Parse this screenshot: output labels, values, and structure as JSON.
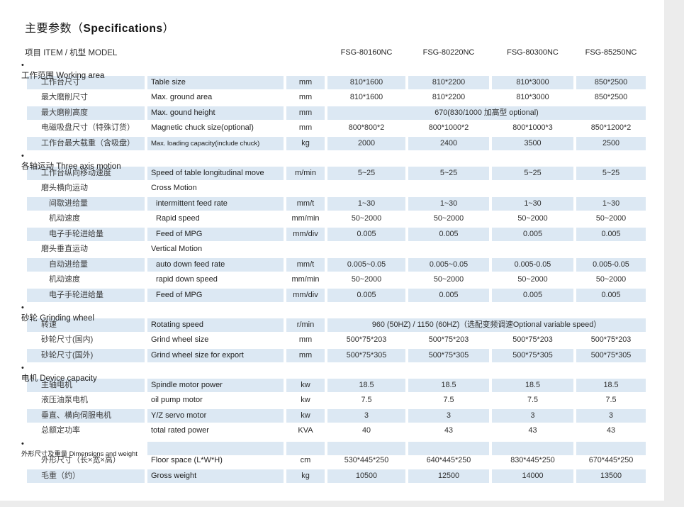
{
  "title": {
    "zh": "主要参数",
    "open": "（",
    "en": "Specifications",
    "close": "）"
  },
  "header": {
    "item_label": "项目 ITEM / 机型 MODEL",
    "models": [
      "FSG-80160NC",
      "FSG-80220NC",
      "FSG-80300NC",
      "FSG-85250NC"
    ]
  },
  "colors": {
    "row_shade": "#dce8f3",
    "page_bg": "#ffffff",
    "outer_bg": "#ececec"
  },
  "table": {
    "sections": [
      {
        "title_zh": "工作范围",
        "title_en": "Working area",
        "header_shaded": false,
        "rows": [
          {
            "zh": "工作台尺寸",
            "en": "Table size",
            "unit": "mm",
            "values": [
              "810*1600",
              "810*2200",
              "810*3000",
              "850*2500"
            ],
            "shaded": true
          },
          {
            "zh": "最大磨削尺寸",
            "en": "Max. ground area",
            "unit": "mm",
            "values": [
              "810*1600",
              "810*2200",
              "810*3000",
              "850*2500"
            ],
            "shaded": false
          },
          {
            "zh": "最大磨削高度",
            "en": "Max. gound height",
            "unit": "mm",
            "span_value": "670(830/1000 加高型 optional)",
            "shaded": true
          },
          {
            "zh": "电磁吸盘尺寸（特殊订货）",
            "en": "Magnetic chuck size(optional)",
            "unit": "mm",
            "values": [
              "800*800*2",
              "800*1000*2",
              "800*1000*3",
              "850*1200*2"
            ],
            "shaded": false
          },
          {
            "zh": "工作台最大载重（含吸盘）",
            "en": "Max. loading capacity(include chuck)",
            "en_small": true,
            "unit": "kg",
            "values": [
              "2000",
              "2400",
              "3500",
              "2500"
            ],
            "shaded": true
          }
        ]
      },
      {
        "title_zh": "各轴运动",
        "title_en": "Three axis motion",
        "header_shaded": false,
        "rows": [
          {
            "zh": "工作台纵向移动速度",
            "en": "Speed of table longitudinal move",
            "unit": "m/min",
            "values": [
              "5~25",
              "5~25",
              "5~25",
              "5~25"
            ],
            "shaded": true
          },
          {
            "zh": "磨头横向运动",
            "en": "Cross Motion",
            "unit": "",
            "values": [
              "",
              "",
              "",
              ""
            ],
            "shaded": false
          },
          {
            "zh": "间歇进给量",
            "en": "intermittent feed rate",
            "unit": "mm/t",
            "values": [
              "1~30",
              "1~30",
              "1~30",
              "1~30"
            ],
            "shaded": true,
            "indent": 1
          },
          {
            "zh": "机动速度",
            "en": "Rapid speed",
            "unit": "mm/min",
            "values": [
              "50~2000",
              "50~2000",
              "50~2000",
              "50~2000"
            ],
            "shaded": false,
            "indent": 1
          },
          {
            "zh": "电子手轮进给量",
            "en": "Feed of MPG",
            "unit": "mm/div",
            "values": [
              "0.005",
              "0.005",
              "0.005",
              "0.005"
            ],
            "shaded": true,
            "indent": 1
          },
          {
            "zh": "磨头垂直运动",
            "en": "Vertical Motion",
            "unit": "",
            "values": [
              "",
              "",
              "",
              ""
            ],
            "shaded": false
          },
          {
            "zh": "自动进给量",
            "en": "auto down feed rate",
            "unit": "mm/t",
            "values": [
              "0.005~0.05",
              "0.005~0.05",
              "0.005-0.05",
              "0.005-0.05"
            ],
            "shaded": true,
            "indent": 1
          },
          {
            "zh": "机动速度",
            "en": "rapid down speed",
            "unit": "mm/min",
            "values": [
              "50~2000",
              "50~2000",
              "50~2000",
              "50~2000"
            ],
            "shaded": false,
            "indent": 1
          },
          {
            "zh": "电子手轮进给量",
            "en": "Feed of MPG",
            "unit": "mm/div",
            "values": [
              "0.005",
              "0.005",
              "0.005",
              "0.005"
            ],
            "shaded": true,
            "indent": 1
          }
        ]
      },
      {
        "title_zh": "砂轮",
        "title_en": "Grinding wheel",
        "header_shaded": false,
        "rows": [
          {
            "zh": "转速",
            "en": "Rotating speed",
            "unit": "r/min",
            "span_value": "960 (50HZ) / 1150 (60HZ)（选配变频调速Optional variable speed）",
            "shaded": true
          },
          {
            "zh": "砂轮尺寸(国内)",
            "en": "Grind wheel size",
            "unit": "mm",
            "values": [
              "500*75*203",
              "500*75*203",
              "500*75*203",
              "500*75*203"
            ],
            "shaded": false
          },
          {
            "zh": "砂轮尺寸(国外)",
            "en": "Grind wheel size for export",
            "unit": "mm",
            "values": [
              "500*75*305",
              "500*75*305",
              "500*75*305",
              "500*75*305"
            ],
            "shaded": true
          }
        ]
      },
      {
        "title_zh": "电机",
        "title_en": "Device capacity",
        "header_shaded": false,
        "rows": [
          {
            "zh": "主轴电机",
            "en": "Spindle motor power",
            "unit": "kw",
            "values": [
              "18.5",
              "18.5",
              "18.5",
              "18.5"
            ],
            "shaded": true
          },
          {
            "zh": "液压油泵电机",
            "en": "oil pump motor",
            "unit": "kw",
            "values": [
              "7.5",
              "7.5",
              "7.5",
              "7.5"
            ],
            "shaded": false
          },
          {
            "zh": "垂直、横向伺服电机",
            "en": "Y/Z servo motor",
            "unit": "kw",
            "values": [
              "3",
              "3",
              "3",
              "3"
            ],
            "shaded": true
          },
          {
            "zh": "总额定功率",
            "en": "total rated power",
            "unit": "KVA",
            "values": [
              "40",
              "43",
              "43",
              "43"
            ],
            "shaded": false
          }
        ]
      },
      {
        "title_zh": "外形尺寸及重量",
        "title_en": "Dimensions and weight",
        "header_shaded": true,
        "rows": [
          {
            "zh": "外形尺寸（长×宽×高）",
            "en": "Floor space (L*W*H)",
            "unit": "cm",
            "values": [
              "530*445*250",
              "640*445*250",
              "830*445*250",
              "670*445*250"
            ],
            "shaded": false
          },
          {
            "zh": "毛重（约）",
            "en": "Gross weight",
            "unit": "kg",
            "values": [
              "10500",
              "12500",
              "14000",
              "13500"
            ],
            "shaded": true
          }
        ]
      }
    ]
  }
}
